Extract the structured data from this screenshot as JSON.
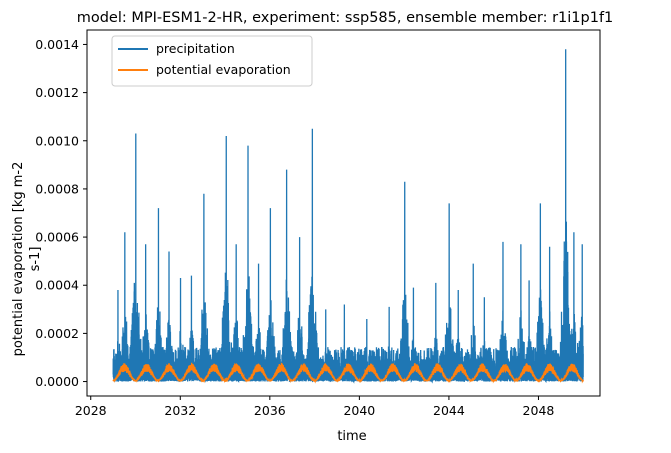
{
  "chart_data": {
    "type": "line",
    "title": "model: MPI-ESM1-2-HR, experiment: ssp585, ensemble member: r1i1p1f1",
    "xlabel": "time",
    "ylabel_lines": [
      "potential evaporation [kg m-2",
      "s-1]"
    ],
    "xlim": [
      "2027-11-01",
      "2050-10-01"
    ],
    "ylim": [
      -6e-05,
      0.00146
    ],
    "x_ticks": [
      "2028",
      "2032",
      "2036",
      "2040",
      "2044",
      "2048"
    ],
    "y_ticks": [
      "0.0000",
      "0.0002",
      "0.0004",
      "0.0006",
      "0.0008",
      "0.0010",
      "0.0012",
      "0.0014"
    ],
    "grid": false,
    "legend_position": "upper-left",
    "series": [
      {
        "name": "precipitation",
        "color": "#1f77b4",
        "note_sampling": "daily values 2029-01-01 to 2049-12-31; peak values read off the chart",
        "peaks": [
          {
            "x": "2029-03-20",
            "y": 0.00038
          },
          {
            "x": "2029-07-10",
            "y": 0.00062
          },
          {
            "x": "2030-01-05",
            "y": 0.00103
          },
          {
            "x": "2030-06-15",
            "y": 0.00057
          },
          {
            "x": "2031-01-10",
            "y": 0.00072
          },
          {
            "x": "2031-07-01",
            "y": 0.00054
          },
          {
            "x": "2032-01-05",
            "y": 0.00043
          },
          {
            "x": "2032-07-01",
            "y": 0.00044
          },
          {
            "x": "2033-01-20",
            "y": 0.00078
          },
          {
            "x": "2034-01-20",
            "y": 0.00102
          },
          {
            "x": "2034-07-01",
            "y": 0.00057
          },
          {
            "x": "2035-01-10",
            "y": 0.00098
          },
          {
            "x": "2035-07-01",
            "y": 0.00049
          },
          {
            "x": "2036-01-10",
            "y": 0.00072
          },
          {
            "x": "2036-10-01",
            "y": 0.00088
          },
          {
            "x": "2037-05-01",
            "y": 0.0006
          },
          {
            "x": "2037-11-25",
            "y": 0.00105
          },
          {
            "x": "2038-07-01",
            "y": 0.0003
          },
          {
            "x": "2039-05-01",
            "y": 0.00032
          },
          {
            "x": "2040-05-01",
            "y": 0.00026
          },
          {
            "x": "2041-05-01",
            "y": 0.00031
          },
          {
            "x": "2042-01-10",
            "y": 0.00083
          },
          {
            "x": "2042-06-01",
            "y": 0.00039
          },
          {
            "x": "2043-06-01",
            "y": 0.00041
          },
          {
            "x": "2044-01-05",
            "y": 0.00074
          },
          {
            "x": "2044-06-01",
            "y": 0.00038
          },
          {
            "x": "2045-02-01",
            "y": 0.00049
          },
          {
            "x": "2045-08-01",
            "y": 0.00035
          },
          {
            "x": "2046-06-01",
            "y": 0.00058
          },
          {
            "x": "2047-03-20",
            "y": 0.00057
          },
          {
            "x": "2047-08-01",
            "y": 0.00042
          },
          {
            "x": "2048-02-01",
            "y": 0.00074
          },
          {
            "x": "2048-07-01",
            "y": 0.00056
          },
          {
            "x": "2049-03-20",
            "y": 0.00138
          },
          {
            "x": "2049-08-01",
            "y": 0.00062
          },
          {
            "x": "2049-12-15",
            "y": 0.00057
          }
        ]
      },
      {
        "name": "potential evaporation",
        "color": "#ff7f0e",
        "pattern": "seasonal cycle, one cycle per year",
        "min": 0.0,
        "max": 7e-05,
        "start": "2029-01-01",
        "end": "2049-12-31"
      }
    ]
  }
}
